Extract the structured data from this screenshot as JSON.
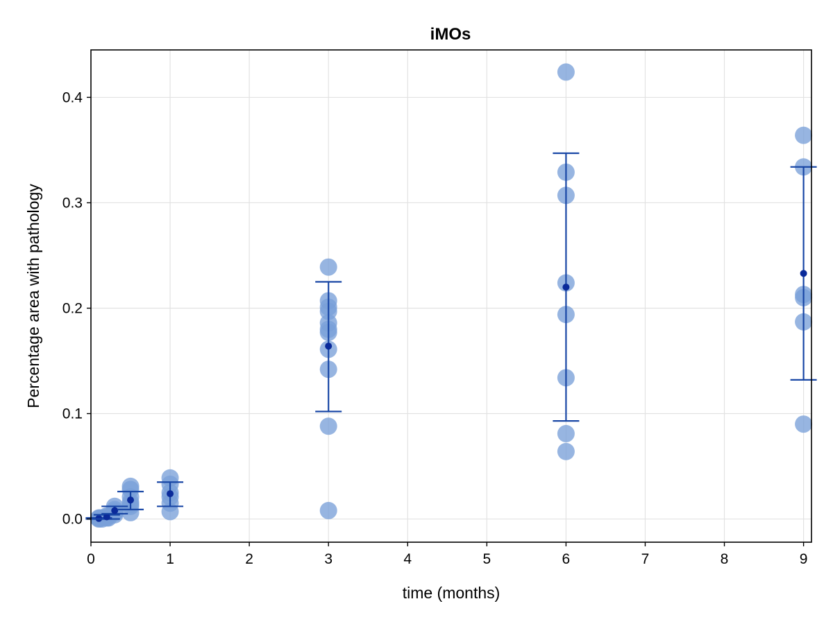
{
  "chart_data": {
    "type": "scatter",
    "title": "iMOs",
    "xlabel": "time (months)",
    "ylabel": "Percentage area with pathology",
    "xlim": [
      0,
      9.1
    ],
    "ylim": [
      -0.022,
      0.445
    ],
    "xticks": [
      0,
      1,
      2,
      3,
      4,
      5,
      6,
      7,
      8,
      9
    ],
    "xtick_labels": [
      "0",
      "1",
      "2",
      "3",
      "4",
      "5",
      "6",
      "7",
      "8",
      "9"
    ],
    "yticks": [
      0.0,
      0.1,
      0.2,
      0.3,
      0.4
    ],
    "ytick_labels": [
      "0.0",
      "0.1",
      "0.2",
      "0.3",
      "0.4"
    ],
    "grid": true,
    "colors": {
      "points": "#7aa0d8",
      "error_bars": "#1846a5",
      "mean": "#0a2a9a",
      "grid": "#e2e2e2"
    },
    "series": [
      {
        "values": [
          {
            "x": 0.1,
            "y": 0.0
          },
          {
            "x": 0.1,
            "y": 0.001
          },
          {
            "x": 0.1,
            "y": 0.0005
          },
          {
            "x": 0.12,
            "y": 0.001
          },
          {
            "x": 0.14,
            "y": 0.0
          },
          {
            "x": 0.2,
            "y": 0.001
          },
          {
            "x": 0.2,
            "y": 0.002
          },
          {
            "x": 0.2,
            "y": 0.003
          },
          {
            "x": 0.22,
            "y": 0.001
          },
          {
            "x": 0.3,
            "y": 0.004
          },
          {
            "x": 0.3,
            "y": 0.006
          },
          {
            "x": 0.3,
            "y": 0.009
          },
          {
            "x": 0.3,
            "y": 0.012
          },
          {
            "x": 0.3,
            "y": 0.007
          },
          {
            "x": 0.5,
            "y": 0.006
          },
          {
            "x": 0.5,
            "y": 0.012
          },
          {
            "x": 0.5,
            "y": 0.016
          },
          {
            "x": 0.5,
            "y": 0.021
          },
          {
            "x": 0.5,
            "y": 0.028
          },
          {
            "x": 0.5,
            "y": 0.031
          },
          {
            "x": 0.5,
            "y": 0.014
          },
          {
            "x": 1.0,
            "y": 0.007
          },
          {
            "x": 1.0,
            "y": 0.015
          },
          {
            "x": 1.0,
            "y": 0.021
          },
          {
            "x": 1.0,
            "y": 0.025
          },
          {
            "x": 1.0,
            "y": 0.033
          },
          {
            "x": 1.0,
            "y": 0.039
          },
          {
            "x": 3.0,
            "y": 0.008
          },
          {
            "x": 3.0,
            "y": 0.088
          },
          {
            "x": 3.0,
            "y": 0.142
          },
          {
            "x": 3.0,
            "y": 0.161
          },
          {
            "x": 3.0,
            "y": 0.177
          },
          {
            "x": 3.0,
            "y": 0.18
          },
          {
            "x": 3.0,
            "y": 0.186
          },
          {
            "x": 3.0,
            "y": 0.197
          },
          {
            "x": 3.0,
            "y": 0.201
          },
          {
            "x": 3.0,
            "y": 0.207
          },
          {
            "x": 3.0,
            "y": 0.239
          },
          {
            "x": 6.0,
            "y": 0.064
          },
          {
            "x": 6.0,
            "y": 0.081
          },
          {
            "x": 6.0,
            "y": 0.134
          },
          {
            "x": 6.0,
            "y": 0.194
          },
          {
            "x": 6.0,
            "y": 0.224
          },
          {
            "x": 6.0,
            "y": 0.307
          },
          {
            "x": 6.0,
            "y": 0.329
          },
          {
            "x": 6.0,
            "y": 0.424
          },
          {
            "x": 9.0,
            "y": 0.09
          },
          {
            "x": 9.0,
            "y": 0.187
          },
          {
            "x": 9.0,
            "y": 0.21
          },
          {
            "x": 9.0,
            "y": 0.213
          },
          {
            "x": 9.0,
            "y": 0.334
          },
          {
            "x": 9.0,
            "y": 0.364
          }
        ]
      }
    ],
    "error_bars": [
      {
        "x": 0.1,
        "mean": 0.0005,
        "lower": 0.0,
        "upper": 0.001
      },
      {
        "x": 0.2,
        "mean": 0.002,
        "lower": 0.0,
        "upper": 0.004
      },
      {
        "x": 0.3,
        "mean": 0.008,
        "lower": 0.005,
        "upper": 0.012
      },
      {
        "x": 0.5,
        "mean": 0.018,
        "lower": 0.009,
        "upper": 0.026
      },
      {
        "x": 1.0,
        "mean": 0.024,
        "lower": 0.012,
        "upper": 0.035
      },
      {
        "x": 3.0,
        "mean": 0.164,
        "lower": 0.102,
        "upper": 0.225
      },
      {
        "x": 6.0,
        "mean": 0.22,
        "lower": 0.093,
        "upper": 0.347
      },
      {
        "x": 9.0,
        "mean": 0.233,
        "lower": 0.132,
        "upper": 0.334
      }
    ]
  }
}
